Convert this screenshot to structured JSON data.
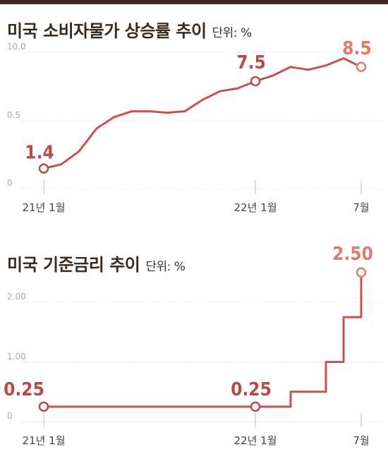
{
  "colors": {
    "top_bar": "#3a2a22",
    "line": "#c9504f",
    "highlight": "#e07b6a",
    "label_dark": "#b84a48",
    "grid": "#dddddd"
  },
  "chart_data": [
    {
      "type": "line",
      "title": "미국 소비자물가 상승률 추이",
      "unit": "단위: %",
      "yticks": [
        "10.0",
        "0.5",
        "0"
      ],
      "xticks": [
        "21년 1월",
        "22년 1월",
        "7월"
      ],
      "x": [
        "21년 1월",
        "21년 2월",
        "21년 3월",
        "21년 4월",
        "21년 5월",
        "21년 6월",
        "21년 7월",
        "21년 8월",
        "21년 9월",
        "21년 10월",
        "21년 11월",
        "21년 12월",
        "22년 1월",
        "22년 2월",
        "22년 3월",
        "22년 4월",
        "22년 5월",
        "22년 6월",
        "22년 7월"
      ],
      "series": [
        {
          "values": [
            1.4,
            1.7,
            2.6,
            4.2,
            5.0,
            5.4,
            5.4,
            5.3,
            5.4,
            6.2,
            6.8,
            7.0,
            7.5,
            7.9,
            8.5,
            8.3,
            8.6,
            9.1,
            8.5
          ]
        }
      ],
      "labels": [
        {
          "i": 0,
          "text": "1.4"
        },
        {
          "i": 12,
          "text": "7.5"
        },
        {
          "i": 18,
          "text": "8.5"
        }
      ]
    },
    {
      "type": "line",
      "title": "미국 기준금리 추이",
      "unit": "단위: %",
      "yticks": [
        "2.00",
        "1.00",
        "0"
      ],
      "xticks": [
        "21년 1월",
        "22년 1월",
        "7월"
      ],
      "x": [
        "21년 1월",
        "21년 2월",
        "21년 3월",
        "21년 4월",
        "21년 5월",
        "21년 6월",
        "21년 7월",
        "21년 8월",
        "21년 9월",
        "21년 10월",
        "21년 11월",
        "21년 12월",
        "22년 1월",
        "22년 2월",
        "22년 3월",
        "22년 4월",
        "22년 5월",
        "22년 6월",
        "22년 7월"
      ],
      "series": [
        {
          "values": [
            0.25,
            0.25,
            0.25,
            0.25,
            0.25,
            0.25,
            0.25,
            0.25,
            0.25,
            0.25,
            0.25,
            0.25,
            0.25,
            0.25,
            0.5,
            0.5,
            1.0,
            1.75,
            2.5
          ]
        }
      ],
      "step": true,
      "labels": [
        {
          "i": 0,
          "text": "0.25"
        },
        {
          "i": 12,
          "text": "0.25"
        },
        {
          "i": 18,
          "text": "2.50"
        }
      ]
    }
  ]
}
